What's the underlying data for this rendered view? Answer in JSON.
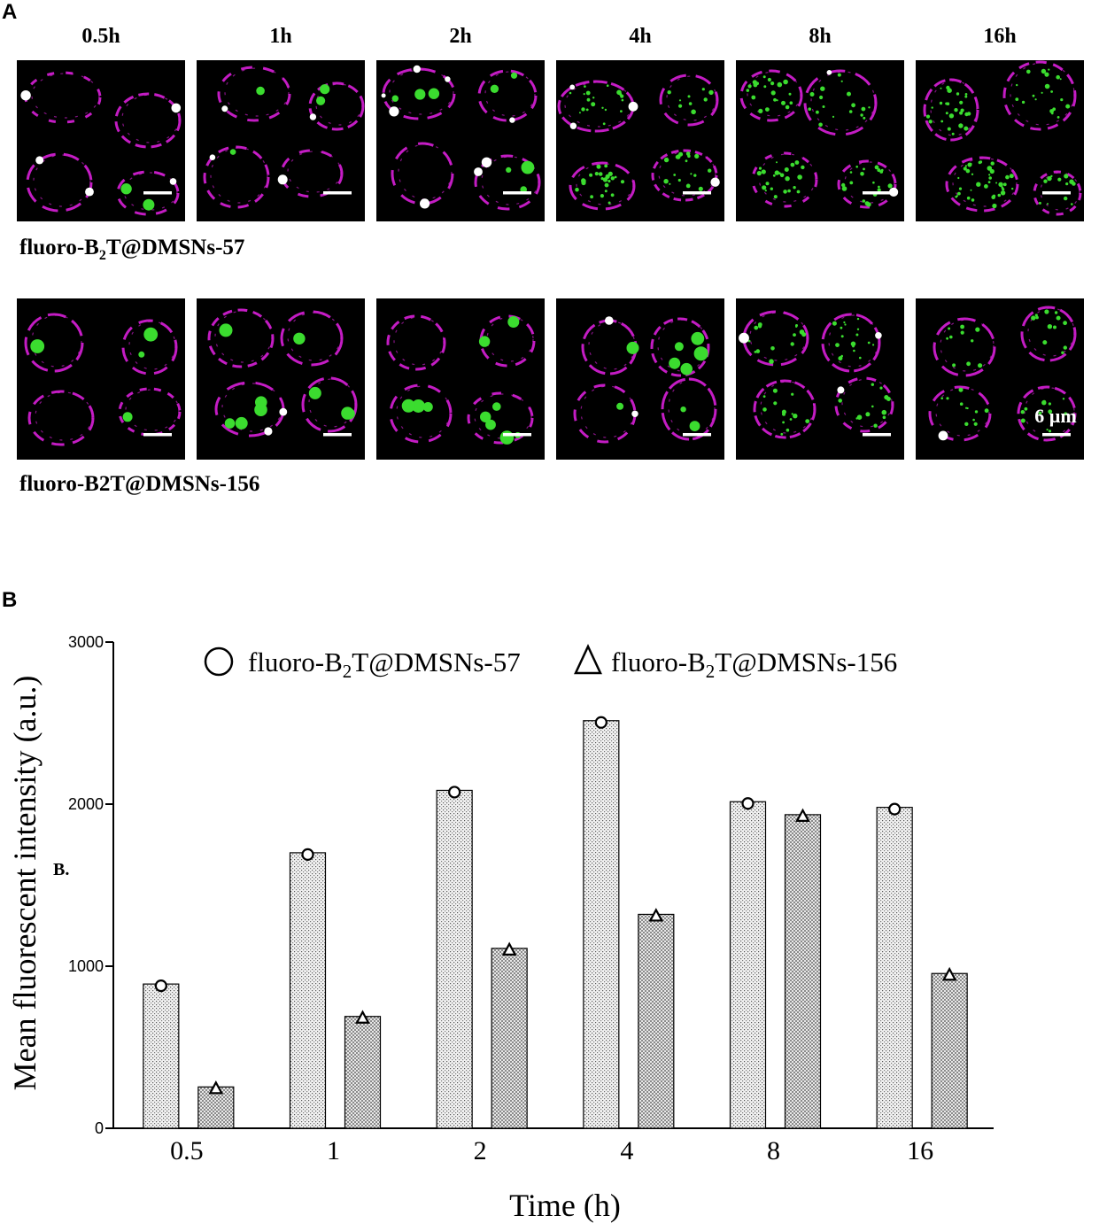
{
  "panel_a": {
    "letter": "A",
    "time_labels": [
      "0.5h",
      "1h",
      "2h",
      "4h",
      "8h",
      "16h"
    ],
    "row1_label_pre": "fluoro-B",
    "row1_label_sub": "2",
    "row1_label_post": "T@DMSNs-57",
    "row2_label": "fluoro-B2T@DMSNs-156",
    "scale_label": "6 µm"
  },
  "panel_b": {
    "letter": "B"
  },
  "colors": {
    "membrane": "#d81fd8",
    "particles": "#3bdc2f",
    "colocalized": "#ffffff",
    "background": "#000000"
  },
  "chart_data": {
    "type": "bar",
    "categories": [
      "0.5",
      "1",
      "2",
      "4",
      "8",
      "16"
    ],
    "series": [
      {
        "name": "fluoro-B2T@DMSNs-57",
        "marker": "circle",
        "values": [
          890,
          1700,
          2085,
          2515,
          2015,
          1980
        ]
      },
      {
        "name": "fluoro-B2T@DMSNs-156",
        "marker": "triangle",
        "values": [
          255,
          690,
          1110,
          1320,
          1935,
          955
        ]
      }
    ],
    "legend": {
      "items": [
        {
          "pre": "fluoro-B",
          "sub": "2",
          "post": "T@DMSNs-57"
        },
        {
          "pre": "fluoro-B",
          "sub": "2",
          "post": "T@DMSNs-156"
        }
      ],
      "placement": "top"
    },
    "xlabel": "Time (h)",
    "ylabel": "Mean fluorescent intensity (a.u.)",
    "ylim": [
      0,
      3000
    ],
    "yticks": [
      0,
      1000,
      2000,
      3000
    ],
    "annotation": "B.",
    "grid": false
  }
}
